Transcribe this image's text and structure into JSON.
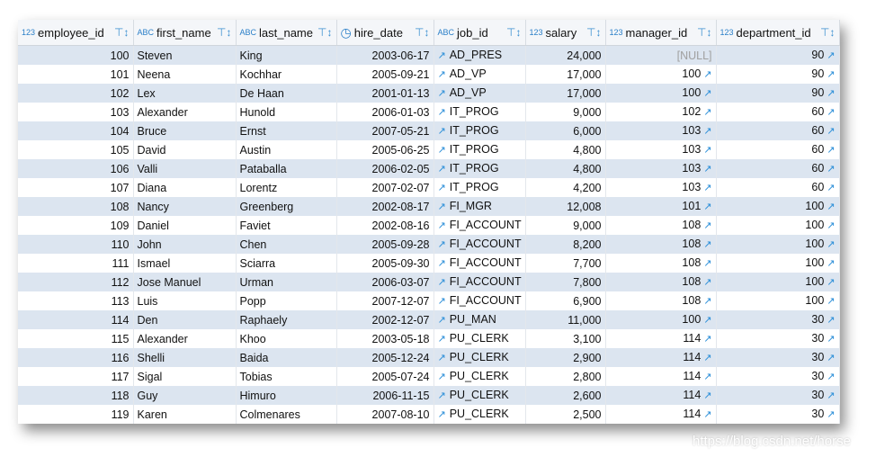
{
  "columns": [
    {
      "name": "employee_id",
      "type_icon": "123"
    },
    {
      "name": "first_name",
      "type_icon": "ABC"
    },
    {
      "name": "last_name",
      "type_icon": "ABC"
    },
    {
      "name": "hire_date",
      "type_icon": "clock"
    },
    {
      "name": "job_id",
      "type_icon": "ABC"
    },
    {
      "name": "salary",
      "type_icon": "123"
    },
    {
      "name": "manager_id",
      "type_icon": "123"
    },
    {
      "name": "department_id",
      "type_icon": "123"
    }
  ],
  "rows": [
    [
      "100",
      "Steven",
      "King",
      "2003-06-17",
      "AD_PRES",
      "24,000",
      "[NULL]",
      "90"
    ],
    [
      "101",
      "Neena",
      "Kochhar",
      "2005-09-21",
      "AD_VP",
      "17,000",
      "100",
      "90"
    ],
    [
      "102",
      "Lex",
      "De Haan",
      "2001-01-13",
      "AD_VP",
      "17,000",
      "100",
      "90"
    ],
    [
      "103",
      "Alexander",
      "Hunold",
      "2006-01-03",
      "IT_PROG",
      "9,000",
      "102",
      "60"
    ],
    [
      "104",
      "Bruce",
      "Ernst",
      "2007-05-21",
      "IT_PROG",
      "6,000",
      "103",
      "60"
    ],
    [
      "105",
      "David",
      "Austin",
      "2005-06-25",
      "IT_PROG",
      "4,800",
      "103",
      "60"
    ],
    [
      "106",
      "Valli",
      "Pataballa",
      "2006-02-05",
      "IT_PROG",
      "4,800",
      "103",
      "60"
    ],
    [
      "107",
      "Diana",
      "Lorentz",
      "2007-02-07",
      "IT_PROG",
      "4,200",
      "103",
      "60"
    ],
    [
      "108",
      "Nancy",
      "Greenberg",
      "2002-08-17",
      "FI_MGR",
      "12,008",
      "101",
      "100"
    ],
    [
      "109",
      "Daniel",
      "Faviet",
      "2002-08-16",
      "FI_ACCOUNT",
      "9,000",
      "108",
      "100"
    ],
    [
      "110",
      "John",
      "Chen",
      "2005-09-28",
      "FI_ACCOUNT",
      "8,200",
      "108",
      "100"
    ],
    [
      "111",
      "Ismael",
      "Sciarra",
      "2005-09-30",
      "FI_ACCOUNT",
      "7,700",
      "108",
      "100"
    ],
    [
      "112",
      "Jose Manuel",
      "Urman",
      "2006-03-07",
      "FI_ACCOUNT",
      "7,800",
      "108",
      "100"
    ],
    [
      "113",
      "Luis",
      "Popp",
      "2007-12-07",
      "FI_ACCOUNT",
      "6,900",
      "108",
      "100"
    ],
    [
      "114",
      "Den",
      "Raphaely",
      "2002-12-07",
      "PU_MAN",
      "11,000",
      "100",
      "30"
    ],
    [
      "115",
      "Alexander",
      "Khoo",
      "2003-05-18",
      "PU_CLERK",
      "3,100",
      "114",
      "30"
    ],
    [
      "116",
      "Shelli",
      "Baida",
      "2005-12-24",
      "PU_CLERK",
      "2,900",
      "114",
      "30"
    ],
    [
      "117",
      "Sigal",
      "Tobias",
      "2005-07-24",
      "PU_CLERK",
      "2,800",
      "114",
      "30"
    ],
    [
      "118",
      "Guy",
      "Himuro",
      "2006-11-15",
      "PU_CLERK",
      "2,600",
      "114",
      "30"
    ],
    [
      "119",
      "Karen",
      "Colmenares",
      "2007-08-10",
      "PU_CLERK",
      "2,500",
      "114",
      "30"
    ]
  ],
  "watermark": "https://blog.csdn.net/horse",
  "colors": {
    "alt_row": "#dce5f0",
    "link_icon": "#2a8ed8",
    "null_text": "#a0a0a0"
  }
}
